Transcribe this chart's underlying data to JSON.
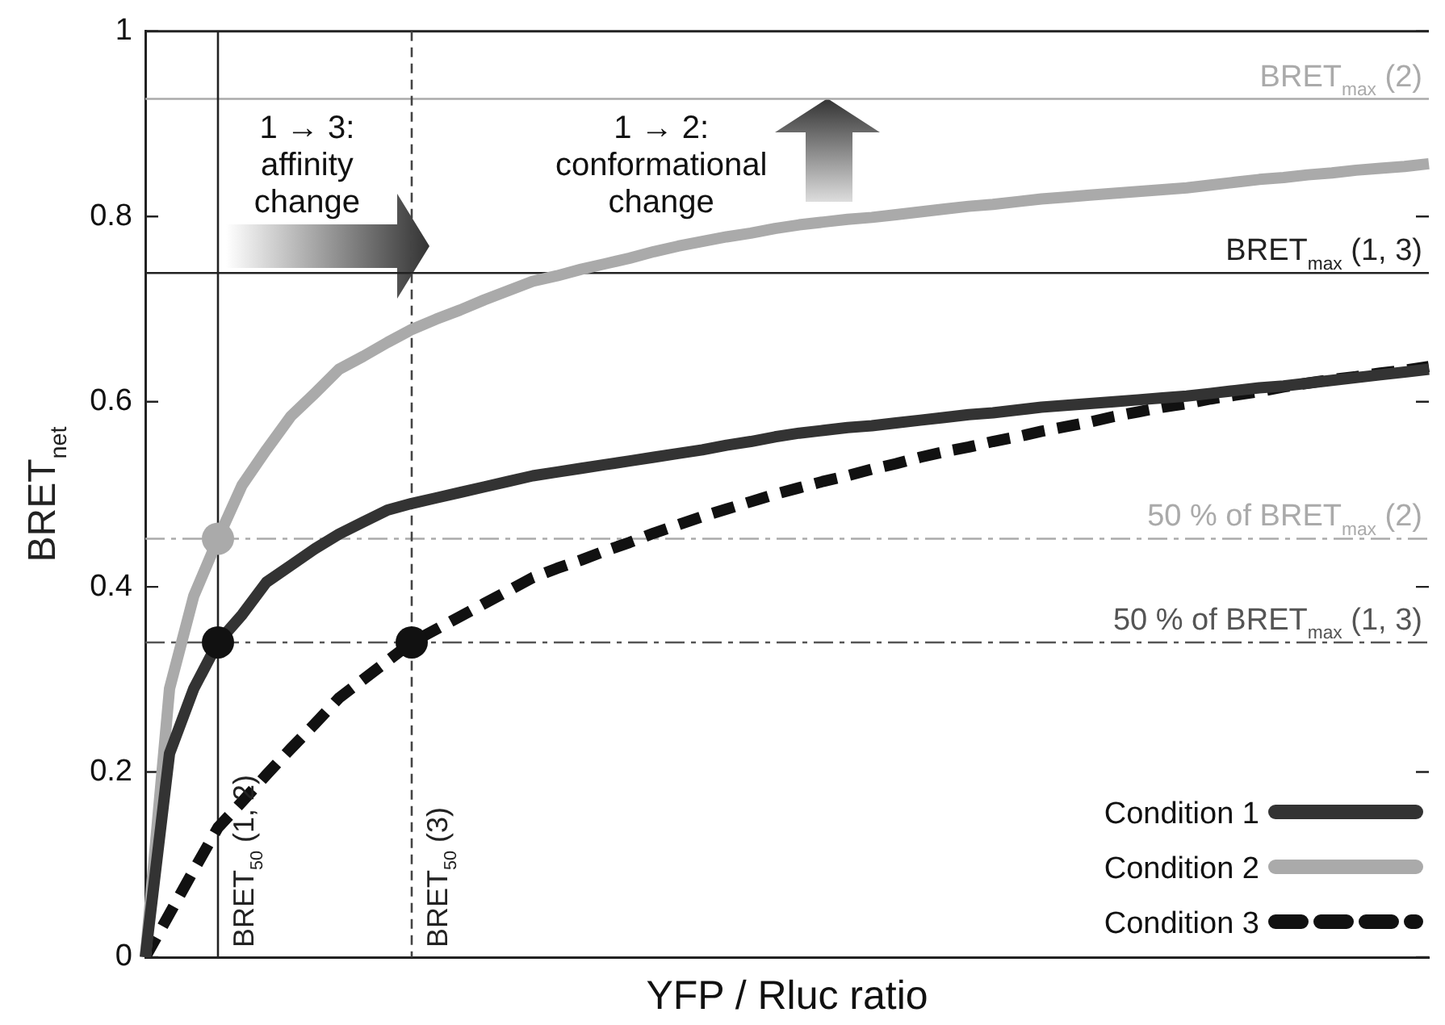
{
  "chart_data": {
    "type": "line",
    "xlabel": "YFP / Rluc ratio",
    "ylabel": "BRET$_{net}$",
    "categories": [
      null,
      null,
      null,
      null,
      null,
      null,
      null,
      null,
      null,
      null,
      null,
      null,
      null,
      null,
      null,
      null,
      null,
      null,
      null,
      null,
      null,
      null,
      null,
      null,
      null,
      null,
      null,
      null,
      null,
      null,
      null,
      null,
      null,
      null,
      null,
      null,
      null,
      null,
      null,
      null,
      null,
      null,
      null,
      null,
      null,
      null,
      null,
      null,
      null,
      null,
      null,
      null,
      null,
      null
    ],
    "ylim": [
      0,
      1
    ],
    "yticks": [
      0,
      0.2,
      0.4,
      0.6,
      0.8,
      1
    ],
    "grid": false,
    "legend": "bottom right",
    "marker": "none",
    "series": [
      {
        "name": "Condition 1",
        "color": "#333333",
        "line_style": "solid",
        "values": [
          0,
          0.22,
          0.29,
          0.34,
          0.37,
          0.405,
          0.423,
          0.441,
          0.457,
          0.47,
          0.483,
          0.49,
          0.496,
          0.502,
          0.508,
          0.514,
          0.52,
          0.524,
          0.528,
          0.532,
          0.536,
          0.54,
          0.544,
          0.548,
          0.553,
          0.557,
          0.562,
          0.566,
          0.569,
          0.572,
          0.574,
          0.577,
          0.58,
          0.583,
          0.586,
          0.588,
          0.591,
          0.594,
          0.596,
          0.598,
          0.6,
          0.602,
          0.604,
          0.606,
          0.609,
          0.612,
          0.615,
          0.617,
          0.62,
          0.623,
          0.626,
          0.629,
          0.632,
          0.635
        ]
      },
      {
        "name": "Condition 2",
        "color": "#aaaaaa",
        "line_style": "solid",
        "values": [
          0,
          0.29,
          0.39,
          0.452,
          0.51,
          0.548,
          0.584,
          0.609,
          0.635,
          0.649,
          0.664,
          0.678,
          0.689,
          0.699,
          0.71,
          0.72,
          0.73,
          0.736,
          0.743,
          0.749,
          0.755,
          0.762,
          0.768,
          0.773,
          0.778,
          0.782,
          0.787,
          0.791,
          0.794,
          0.797,
          0.799,
          0.802,
          0.805,
          0.808,
          0.811,
          0.813,
          0.816,
          0.819,
          0.821,
          0.823,
          0.825,
          0.827,
          0.829,
          0.831,
          0.834,
          0.837,
          0.84,
          0.842,
          0.845,
          0.847,
          0.85,
          0.852,
          0.854,
          0.857
        ]
      },
      {
        "name": "Condition 3",
        "color": "#111111",
        "line_style": "dashed",
        "values": [
          0,
          0.047,
          0.094,
          0.14,
          0.168,
          0.197,
          0.225,
          0.252,
          0.28,
          0.3,
          0.32,
          0.34,
          0.354,
          0.368,
          0.382,
          0.396,
          0.41,
          0.42,
          0.429,
          0.439,
          0.448,
          0.458,
          0.467,
          0.476,
          0.484,
          0.492,
          0.5,
          0.507,
          0.514,
          0.52,
          0.527,
          0.533,
          0.54,
          0.546,
          0.551,
          0.557,
          0.562,
          0.568,
          0.573,
          0.578,
          0.584,
          0.589,
          0.594,
          0.598,
          0.603,
          0.607,
          0.611,
          0.616,
          0.62,
          0.624,
          0.627,
          0.631,
          0.634,
          0.638
        ]
      },
      {
        "type": "scatter",
        "marker": "circle",
        "color": "#111111",
        "values": [
          null,
          null,
          null,
          0.34,
          null,
          null,
          null,
          null,
          null,
          null,
          null,
          0.34,
          null,
          null,
          null,
          null,
          null,
          null,
          null,
          null,
          null,
          null,
          null,
          null,
          null,
          null,
          null,
          null,
          null,
          null,
          null,
          null,
          null,
          null,
          null,
          null,
          null,
          null,
          null,
          null,
          null,
          null,
          null,
          null,
          null,
          null,
          null,
          null,
          null,
          null,
          null,
          null,
          null,
          null
        ]
      },
      {
        "type": "scatter",
        "marker": "circle",
        "color": "#aaaaaa",
        "values": [
          null,
          null,
          null,
          0.452,
          null,
          null,
          null,
          null,
          null,
          null,
          null,
          null,
          null,
          null,
          null,
          null,
          null,
          null,
          null,
          null,
          null,
          null,
          null,
          null,
          null,
          null,
          null,
          null,
          null,
          null,
          null,
          null,
          null,
          null,
          null,
          null,
          null,
          null,
          null,
          null,
          null,
          null,
          null,
          null,
          null,
          null,
          null,
          null,
          null,
          null,
          null,
          null,
          null,
          null
        ]
      }
    ],
    "ref_lines": [
      {
        "axis": "y",
        "value": 0.927,
        "label": "BRET$_{max}$ (2)",
        "color": "#aaaaaa",
        "line_style": "solid"
      },
      {
        "axis": "y",
        "value": 0.739,
        "label": "BRET$_{max}$ (1, 3)",
        "color": "#222222",
        "line_style": "solid"
      },
      {
        "axis": "y",
        "value": 0.452,
        "label": "50 % of BRET$_{max}$ (2)",
        "color": "#aaaaaa",
        "line_style": "dashed"
      },
      {
        "axis": "y",
        "value": 0.34,
        "label": "50 % of BRET$_{max}$ (1, 3)",
        "color": "#555555",
        "line_style": "dashed"
      }
    ],
    "annotations": [
      "1 → 3: affinity change",
      "1 → 2: conformational change",
      "BRET$_{50}$ (1, 2)",
      "BRET$_{50}$ (3)"
    ]
  }
}
